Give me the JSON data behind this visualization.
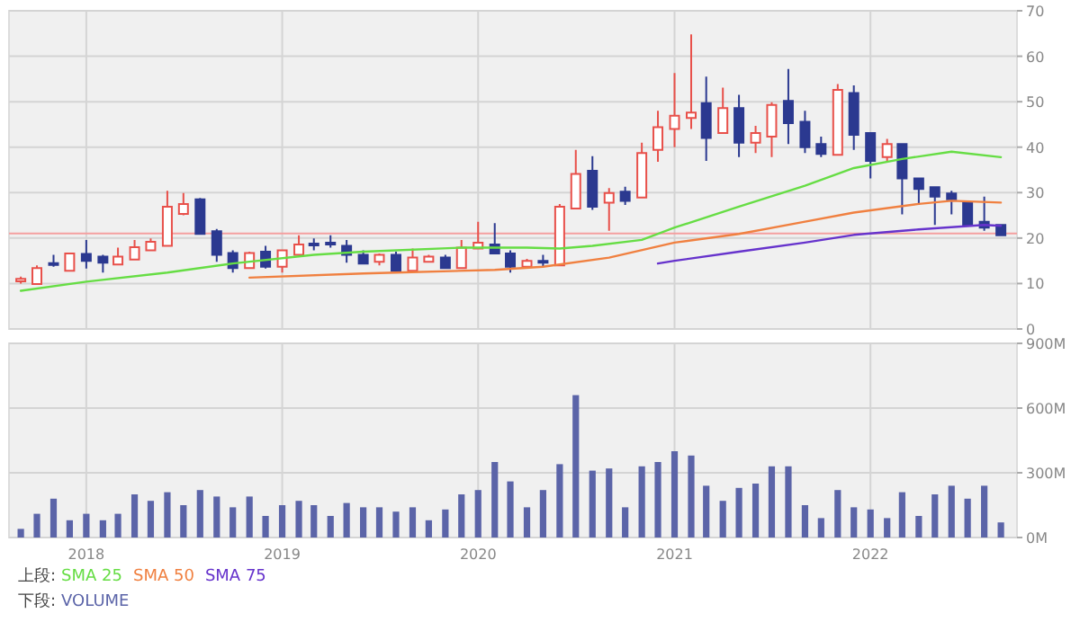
{
  "chart_data": [
    {
      "type": "candlestick",
      "x": [
        "2017-09",
        "2017-10",
        "2017-11",
        "2017-12",
        "2018-01",
        "2018-02",
        "2018-03",
        "2018-04",
        "2018-05",
        "2018-06",
        "2018-07",
        "2018-08",
        "2018-09",
        "2018-10",
        "2018-11",
        "2018-12",
        "2019-01",
        "2019-02",
        "2019-03",
        "2019-04",
        "2019-05",
        "2019-06",
        "2019-07",
        "2019-08",
        "2019-09",
        "2019-10",
        "2019-11",
        "2019-12",
        "2020-01",
        "2020-02",
        "2020-03",
        "2020-04",
        "2020-05",
        "2020-06",
        "2020-07",
        "2020-08",
        "2020-09",
        "2020-10",
        "2020-11",
        "2020-12",
        "2021-01",
        "2021-02",
        "2021-03",
        "2021-04",
        "2021-05",
        "2021-06",
        "2021-07",
        "2021-08",
        "2021-09",
        "2021-10",
        "2021-11",
        "2021-12",
        "2022-01",
        "2022-02",
        "2022-03",
        "2022-04",
        "2022-05",
        "2022-06",
        "2022-07",
        "2022-08",
        "2022-09"
      ],
      "ohlc": [
        [
          10.5,
          11.5,
          10,
          11
        ],
        [
          9.9,
          14,
          9.9,
          13.4
        ],
        [
          14.5,
          16.3,
          13.7,
          14.2
        ],
        [
          12.8,
          16.8,
          12.6,
          16.6
        ],
        [
          16.5,
          19.6,
          13.3,
          15
        ],
        [
          15.9,
          16.3,
          12.4,
          14.6
        ],
        [
          14.2,
          17.9,
          14.2,
          15.9
        ],
        [
          15.3,
          19.6,
          15.3,
          18
        ],
        [
          17.3,
          19.9,
          17.3,
          19.2
        ],
        [
          18.3,
          30.4,
          18.3,
          26.9
        ],
        [
          25.3,
          29.9,
          25,
          27.5
        ],
        [
          28.5,
          28.8,
          20.9,
          20.9
        ],
        [
          21.5,
          22,
          14.8,
          16.3
        ],
        [
          16.7,
          17.3,
          12.4,
          13.4
        ],
        [
          13.4,
          17,
          13.4,
          16.7
        ],
        [
          17,
          18.3,
          13.3,
          13.7
        ],
        [
          13.7,
          17.5,
          12.4,
          17.3
        ],
        [
          16.3,
          20.6,
          16.3,
          18.6
        ],
        [
          18.8,
          19.9,
          17.3,
          18.5
        ],
        [
          19,
          20.6,
          17.9,
          18.8
        ],
        [
          18.3,
          19.6,
          14.6,
          16.3
        ],
        [
          16.3,
          17.3,
          14.4,
          14.4
        ],
        [
          14.8,
          16.6,
          14,
          16.3
        ],
        [
          16.3,
          17,
          12.8,
          12.8
        ],
        [
          12.8,
          17.7,
          12.8,
          15.7
        ],
        [
          14.8,
          16.3,
          14.6,
          15.9
        ],
        [
          15.7,
          16.3,
          13.4,
          13.4
        ],
        [
          13.4,
          19.6,
          13.4,
          17.9
        ],
        [
          17.7,
          23.6,
          17.7,
          19
        ],
        [
          18.6,
          23.3,
          16.6,
          16.6
        ],
        [
          16.6,
          17.3,
          12.4,
          13.7
        ],
        [
          13.7,
          15.4,
          13.7,
          15
        ],
        [
          15,
          16.3,
          13.7,
          14.8
        ],
        [
          14,
          27.5,
          14,
          26.9
        ],
        [
          26.5,
          39.4,
          26.5,
          34.1
        ],
        [
          34.8,
          38,
          26.2,
          26.9
        ],
        [
          27.8,
          31,
          21.6,
          29.9
        ],
        [
          30.2,
          31.3,
          27.3,
          28.2
        ],
        [
          28.9,
          41,
          28.9,
          38.7
        ],
        [
          39.4,
          48,
          36.8,
          44.4
        ],
        [
          44,
          56.3,
          40,
          46.9
        ],
        [
          46.4,
          64.8,
          44,
          47.6
        ],
        [
          49.7,
          55.5,
          37,
          42
        ],
        [
          43.1,
          53.1,
          43.1,
          48.6
        ],
        [
          48.6,
          51.5,
          37.8,
          41
        ],
        [
          41,
          44.7,
          38.7,
          43.1
        ],
        [
          42.3,
          49.9,
          37.8,
          49.3
        ],
        [
          50.2,
          57.2,
          40.7,
          45.3
        ],
        [
          45.6,
          48,
          38.7,
          40
        ],
        [
          40.7,
          42.3,
          37.8,
          38.5
        ],
        [
          38.3,
          53.9,
          38.3,
          52.6
        ],
        [
          51.9,
          53.6,
          39.4,
          42.7
        ],
        [
          43.1,
          43.1,
          33.1,
          37
        ],
        [
          37.8,
          41.8,
          36.8,
          40.7
        ],
        [
          40.7,
          40.7,
          25.2,
          33.1
        ],
        [
          33.1,
          33.1,
          27.3,
          30.8
        ],
        [
          31.2,
          31.2,
          22.9,
          29.1
        ],
        [
          29.8,
          30.4,
          25.2,
          28.5
        ],
        [
          27.8,
          27.8,
          22.9,
          22.9
        ],
        [
          23.6,
          29.1,
          21.6,
          22.3
        ],
        [
          22.9,
          22.9,
          20.6,
          20.6
        ]
      ],
      "series": [
        {
          "name": "SMA 25",
          "type": "line",
          "color": "#66dd44",
          "x": [
            "2017-09",
            "2018-01",
            "2018-06",
            "2018-10",
            "2019-03",
            "2019-06",
            "2019-12",
            "2020-04",
            "2020-06",
            "2020-08",
            "2020-11",
            "2021-01",
            "2021-05",
            "2021-09",
            "2021-12",
            "2022-03",
            "2022-06",
            "2022-09"
          ],
          "values": [
            8.4,
            10.4,
            12.4,
            14.4,
            16.3,
            17,
            17.9,
            17.9,
            17.7,
            18.3,
            19.6,
            22.3,
            26.9,
            31.5,
            35.4,
            37.4,
            39,
            37.8
          ]
        },
        {
          "name": "SMA 50",
          "type": "line",
          "color": "#f08040",
          "x": [
            "2018-11",
            "2019-06",
            "2019-08",
            "2020-02",
            "2020-05",
            "2020-09",
            "2021-01",
            "2021-05",
            "2021-09",
            "2021-12",
            "2022-04",
            "2022-06",
            "2022-09"
          ],
          "values": [
            11.3,
            12.2,
            12.4,
            13,
            13.7,
            15.7,
            19,
            20.9,
            23.6,
            25.6,
            27.5,
            28.2,
            27.8
          ]
        },
        {
          "name": "SMA 75",
          "type": "line",
          "color": "#6633cc",
          "x": [
            "2020-12",
            "2021-01",
            "2021-05",
            "2021-09",
            "2021-12",
            "2022-04",
            "2022-08",
            "2022-09"
          ],
          "values": [
            14.4,
            15,
            17,
            19,
            20.7,
            21.9,
            22.9,
            22.7
          ]
        }
      ],
      "ref_lines": [
        {
          "axis": "y",
          "value": 21,
          "color": "#f4a0a0"
        }
      ],
      "xlim": [
        "2017-08-10",
        "2022-10-01"
      ],
      "xticks": [
        {
          "value": "2018-01",
          "label": null
        },
        {
          "value": "2019-01",
          "label": null
        },
        {
          "value": "2020-01",
          "label": null
        },
        {
          "value": "2021-01",
          "label": null
        },
        {
          "value": "2022-01",
          "label": null
        }
      ],
      "ylim": [
        0,
        70
      ],
      "yticks": [
        0,
        10,
        20,
        30,
        40,
        50,
        60,
        70
      ],
      "tick_labels": "y",
      "grid": true,
      "legend": "bottom",
      "annotations": [
        "上段:"
      ]
    },
    {
      "type": "bar",
      "x": [
        "2017-09",
        "2017-10",
        "2017-11",
        "2017-12",
        "2018-01",
        "2018-02",
        "2018-03",
        "2018-04",
        "2018-05",
        "2018-06",
        "2018-07",
        "2018-08",
        "2018-09",
        "2018-10",
        "2018-11",
        "2018-12",
        "2019-01",
        "2019-02",
        "2019-03",
        "2019-04",
        "2019-05",
        "2019-06",
        "2019-07",
        "2019-08",
        "2019-09",
        "2019-10",
        "2019-11",
        "2019-12",
        "2020-01",
        "2020-02",
        "2020-03",
        "2020-04",
        "2020-05",
        "2020-06",
        "2020-07",
        "2020-08",
        "2020-09",
        "2020-10",
        "2020-11",
        "2020-12",
        "2021-01",
        "2021-02",
        "2021-03",
        "2021-04",
        "2021-05",
        "2021-06",
        "2021-07",
        "2021-08",
        "2021-09",
        "2021-10",
        "2021-11",
        "2021-12",
        "2022-01",
        "2022-02",
        "2022-03",
        "2022-04",
        "2022-05",
        "2022-06",
        "2022-07",
        "2022-08",
        "2022-09"
      ],
      "series": [
        {
          "name": "VOLUME",
          "color": "#5b64a8",
          "values": [
            40,
            110,
            180,
            80,
            110,
            80,
            110,
            200,
            170,
            210,
            150,
            220,
            190,
            140,
            190,
            100,
            150,
            170,
            150,
            100,
            160,
            140,
            140,
            120,
            140,
            80,
            130,
            200,
            220,
            350,
            260,
            140,
            220,
            340,
            660,
            310,
            320,
            140,
            330,
            350,
            400,
            380,
            240,
            170,
            230,
            250,
            330,
            330,
            150,
            90,
            220,
            140,
            130,
            90,
            210,
            100,
            200,
            240,
            180,
            240,
            70
          ]
        }
      ],
      "xlim": [
        "2017-08-10",
        "2022-10-01"
      ],
      "xticks": [
        {
          "value": "2018-01",
          "label": "2018"
        },
        {
          "value": "2019-01",
          "label": "2019"
        },
        {
          "value": "2020-01",
          "label": "2020"
        },
        {
          "value": "2021-01",
          "label": "2021"
        },
        {
          "value": "2022-01",
          "label": "2022"
        }
      ],
      "ylim": [
        0,
        900
      ],
      "yticks": [
        {
          "value": 0,
          "label": "0M"
        },
        {
          "value": 300,
          "label": "300M"
        },
        {
          "value": 600,
          "label": "600M"
        },
        {
          "value": 900,
          "label": "900M"
        }
      ],
      "grid": true,
      "legend": "bottom",
      "annotations": [
        "下段:"
      ]
    }
  ]
}
